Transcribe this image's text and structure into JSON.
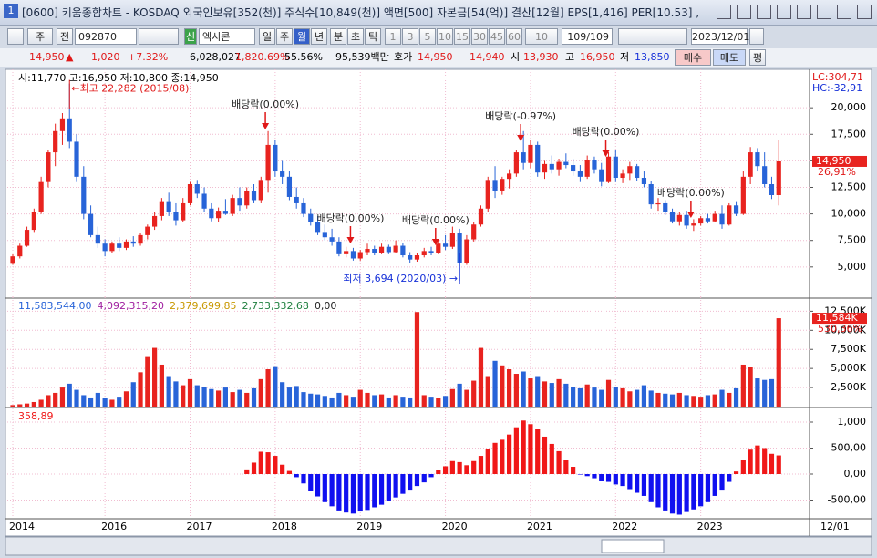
{
  "window": {
    "title": "[0600] 키움종합차트 - KOSDAQ 외국인보유[352(천)] 주식수[10,849(천)] 액면[500] 자본금[54(억)] 결산[12월] EPS[1,416] PER[10.53] ,"
  },
  "toolbar": {
    "items": [
      "주",
      "전",
      "092870",
      "신",
      "엑시콘",
      "일",
      "주",
      "월",
      "년",
      "분",
      "초",
      "틱",
      "1",
      "3",
      "5",
      "10",
      "15",
      "30",
      "45",
      "60",
      "10",
      "109/109",
      "2023/12/01"
    ]
  },
  "quote": {
    "items": [
      "14,950",
      "▲",
      "1,020",
      "+7.32%",
      "6,028,027",
      "1,820.69%",
      "55.56%",
      "95,539백만",
      "호가",
      "14,950",
      "14,940",
      "시",
      "13,930",
      "고",
      "16,950",
      "저",
      "13,850",
      "매수",
      "매도",
      "평"
    ]
  },
  "chart_data": [
    {
      "type": "candlestick",
      "legend": "시:11,770 고:16,950 저:10,800 종:14,950",
      "up_color": "#e8231f",
      "down_color": "#2864d8",
      "ylim": [
        2150,
        23450
      ],
      "yticks": [
        {
          "value": 5000,
          "label": "5,000"
        },
        {
          "value": 7500,
          "label": "7,500"
        },
        {
          "value": 10000,
          "label": "10,000"
        },
        {
          "value": 12500,
          "label": "12,500"
        },
        {
          "value": 15000,
          "label": "15,000"
        },
        {
          "value": 17500,
          "label": "17,500"
        },
        {
          "value": 20000,
          "label": "20,000"
        }
      ],
      "grid": true,
      "right_labels": [
        "LC:304,71",
        "HC:-32,91"
      ],
      "last_price": {
        "value": 14950,
        "label": "14,950"
      },
      "change_label": "26,91%",
      "annotations": {
        "high": "←최고 22,282 (2015/08)",
        "low": "최저 3,694 (2020/03) →",
        "dividends": [
          "배당락(0.00%)",
          "배당락(0.00%)",
          "배당락(0.00%)",
          "배당락(-0.97%)",
          "배당락(0.00%)",
          "배당락(0.00%)"
        ]
      },
      "candles": [
        [
          5300,
          6200,
          5200,
          6000
        ],
        [
          6000,
          7200,
          5800,
          7000
        ],
        [
          7000,
          8800,
          6900,
          8500
        ],
        [
          8500,
          10500,
          8300,
          10200
        ],
        [
          10200,
          13500,
          10000,
          13000
        ],
        [
          13000,
          16000,
          12500,
          15800
        ],
        [
          15800,
          18500,
          14500,
          17800
        ],
        [
          17800,
          19500,
          16500,
          19000
        ],
        [
          19000,
          22282,
          16200,
          16800
        ],
        [
          16800,
          17500,
          13000,
          13500
        ],
        [
          13500,
          14500,
          9500,
          10000
        ],
        [
          10000,
          10800,
          7800,
          8000
        ],
        [
          8000,
          8800,
          6800,
          7200
        ],
        [
          7200,
          7600,
          6000,
          6500
        ],
        [
          6500,
          7400,
          6300,
          7200
        ],
        [
          7200,
          7800,
          6500,
          6800
        ],
        [
          6800,
          7600,
          6600,
          7400
        ],
        [
          7400,
          7900,
          6900,
          7200
        ],
        [
          7200,
          8200,
          7000,
          8000
        ],
        [
          8000,
          9000,
          7600,
          8800
        ],
        [
          8800,
          10200,
          8500,
          9800
        ],
        [
          9800,
          11500,
          9400,
          11200
        ],
        [
          11200,
          12000,
          9800,
          10200
        ],
        [
          10200,
          11000,
          8900,
          9400
        ],
        [
          9400,
          11500,
          9200,
          11000
        ],
        [
          11000,
          13000,
          10800,
          12800
        ],
        [
          12800,
          13200,
          11500,
          11900
        ],
        [
          11900,
          12500,
          10200,
          10500
        ],
        [
          10500,
          11000,
          9300,
          9600
        ],
        [
          9600,
          10600,
          9200,
          10300
        ],
        [
          10300,
          11400,
          9900,
          10000
        ],
        [
          10000,
          11800,
          9800,
          11500
        ],
        [
          11500,
          12500,
          10300,
          10800
        ],
        [
          10800,
          12500,
          10500,
          12200
        ],
        [
          12200,
          12800,
          11000,
          11300
        ],
        [
          11300,
          13500,
          11000,
          13200
        ],
        [
          13200,
          17800,
          12000,
          16500
        ],
        [
          16500,
          17000,
          13500,
          14000
        ],
        [
          14000,
          15000,
          12800,
          13500
        ],
        [
          13500,
          14000,
          11300,
          11600
        ],
        [
          11600,
          12500,
          10500,
          11000
        ],
        [
          11000,
          11500,
          9700,
          10000
        ],
        [
          10000,
          10500,
          8900,
          9200
        ],
        [
          9200,
          9800,
          8000,
          8300
        ],
        [
          8300,
          9000,
          7500,
          7800
        ],
        [
          7800,
          8600,
          7000,
          7400
        ],
        [
          7400,
          7800,
          6000,
          6200
        ],
        [
          6200,
          6900,
          5900,
          6500
        ],
        [
          6500,
          6800,
          5600,
          5800
        ],
        [
          5800,
          6600,
          5600,
          6400
        ],
        [
          6400,
          7200,
          6100,
          6700
        ],
        [
          6700,
          7000,
          6100,
          6300
        ],
        [
          6300,
          7200,
          6200,
          6900
        ],
        [
          6900,
          7100,
          6200,
          6400
        ],
        [
          6400,
          7500,
          6300,
          7000
        ],
        [
          7000,
          7300,
          5900,
          6100
        ],
        [
          6100,
          6400,
          5400,
          5700
        ],
        [
          5700,
          6300,
          5500,
          6100
        ],
        [
          6100,
          6800,
          5900,
          6500
        ],
        [
          6500,
          6900,
          6100,
          6300
        ],
        [
          6300,
          7600,
          6200,
          7200
        ],
        [
          7200,
          8000,
          6600,
          6900
        ],
        [
          6900,
          8800,
          6700,
          8200
        ],
        [
          8200,
          8600,
          3694,
          5400
        ],
        [
          5400,
          8000,
          5200,
          7600
        ],
        [
          7600,
          9200,
          7400,
          9000
        ],
        [
          9000,
          10800,
          8800,
          10500
        ],
        [
          10500,
          13500,
          10200,
          13200
        ],
        [
          13200,
          14500,
          11500,
          12200
        ],
        [
          12200,
          13500,
          11800,
          13300
        ],
        [
          13300,
          14200,
          12400,
          13800
        ],
        [
          13800,
          16000,
          13500,
          15800
        ],
        [
          15800,
          17800,
          14200,
          14800
        ],
        [
          14800,
          17000,
          14300,
          16500
        ],
        [
          16500,
          16800,
          13500,
          13900
        ],
        [
          13900,
          15000,
          13300,
          14700
        ],
        [
          14700,
          15500,
          13800,
          14200
        ],
        [
          14200,
          15200,
          13600,
          14900
        ],
        [
          14900,
          15700,
          14300,
          14600
        ],
        [
          14600,
          15200,
          13600,
          14000
        ],
        [
          14000,
          14600,
          13000,
          13500
        ],
        [
          13500,
          15500,
          13300,
          15100
        ],
        [
          15100,
          15400,
          13800,
          14200
        ],
        [
          14200,
          14800,
          12600,
          13000
        ],
        [
          13000,
          15800,
          12900,
          15400
        ],
        [
          15400,
          16000,
          13000,
          13400
        ],
        [
          13400,
          14200,
          12900,
          13800
        ],
        [
          13800,
          14900,
          13200,
          14500
        ],
        [
          14500,
          14700,
          13100,
          13400
        ],
        [
          13400,
          14000,
          12500,
          12800
        ],
        [
          12800,
          13100,
          10500,
          10900
        ],
        [
          10900,
          11500,
          10300,
          11000
        ],
        [
          11000,
          11300,
          9900,
          10200
        ],
        [
          10200,
          10500,
          9100,
          9300
        ],
        [
          9300,
          10200,
          8900,
          9900
        ],
        [
          9900,
          10300,
          8600,
          8900
        ],
        [
          8900,
          9500,
          8400,
          9100
        ],
        [
          9100,
          9800,
          8900,
          9600
        ],
        [
          9600,
          10000,
          9100,
          9300
        ],
        [
          9300,
          10300,
          9200,
          10000
        ],
        [
          10000,
          10800,
          8600,
          9000
        ],
        [
          9000,
          11000,
          8900,
          10800
        ],
        [
          10800,
          11200,
          9800,
          10000
        ],
        [
          10000,
          14000,
          9900,
          13500
        ],
        [
          13500,
          16300,
          12800,
          15800
        ],
        [
          15800,
          16200,
          14000,
          14500
        ],
        [
          14500,
          15800,
          12500,
          12800
        ],
        [
          12800,
          13500,
          11400,
          11770
        ],
        [
          11770,
          16950,
          10800,
          14950
        ]
      ]
    },
    {
      "type": "bar",
      "legend": [
        "11,583,544,00",
        "4,092,315,20",
        "2,379,699,85",
        "2,733,332,68",
        "0,00"
      ],
      "legend_colors": [
        "#2864d8",
        "#a020a0",
        "#c89800",
        "#208040",
        "#222222"
      ],
      "ylim": [
        0,
        14100
      ],
      "yticks": [
        {
          "value": 2500,
          "label": "2,500K"
        },
        {
          "value": 5000,
          "label": "5,000K"
        },
        {
          "value": 7500,
          "label": "7,500K"
        },
        {
          "value": 10000,
          "label": "10,000K"
        },
        {
          "value": 12500,
          "label": "12,500K"
        }
      ],
      "grid": true,
      "last_value": {
        "value": 11584,
        "label": "11,584K"
      },
      "change_label": "530,36%",
      "values": [
        200,
        300,
        400,
        600,
        900,
        1500,
        1800,
        2500,
        3000,
        2200,
        1500,
        1200,
        1800,
        1100,
        900,
        1300,
        2000,
        3200,
        4500,
        6500,
        7700,
        5500,
        4000,
        3300,
        2800,
        3600,
        2800,
        2600,
        2300,
        2100,
        2500,
        1900,
        2200,
        1800,
        2400,
        3600,
        4900,
        5300,
        3200,
        2500,
        2700,
        1900,
        1700,
        1600,
        1400,
        1200,
        1800,
        1500,
        1300,
        2200,
        1800,
        1500,
        1600,
        1200,
        1500,
        1300,
        1200,
        12400,
        1500,
        1300,
        1100,
        1400,
        2300,
        3000,
        2200,
        3400,
        7700,
        4000,
        6000,
        5400,
        4900,
        4300,
        4600,
        3700,
        4000,
        3300,
        3100,
        3600,
        3000,
        2600,
        2400,
        2900,
        2500,
        2200,
        3500,
        2600,
        2400,
        2000,
        2200,
        2800,
        2100,
        1800,
        1700,
        1600,
        1800,
        1500,
        1400,
        1300,
        1500,
        1600,
        2200,
        1800,
        2400,
        5500,
        5200,
        3700,
        3500,
        3600,
        11584
      ]
    },
    {
      "type": "bar",
      "legend": "358,89",
      "pos_color": "#f01818",
      "neg_color": "#1010f0",
      "ylim": [
        -842,
        1228
      ],
      "yticks": [
        {
          "value": -500,
          "label": "-500,00"
        },
        {
          "value": 0,
          "label": "0,00"
        },
        {
          "value": 500,
          "label": "500,00"
        },
        {
          "value": 1000,
          "label": "1,000"
        }
      ],
      "grid": true,
      "categories": [
        "2014",
        null,
        null,
        null,
        null,
        null,
        null,
        null,
        null,
        null,
        null,
        null,
        null,
        "2016",
        null,
        null,
        null,
        null,
        null,
        null,
        null,
        null,
        null,
        null,
        null,
        "2017",
        null,
        null,
        null,
        null,
        null,
        null,
        null,
        null,
        null,
        null,
        null,
        "2018",
        null,
        null,
        null,
        null,
        null,
        null,
        null,
        null,
        null,
        null,
        null,
        "2019",
        null,
        null,
        null,
        null,
        null,
        null,
        null,
        null,
        null,
        null,
        null,
        "2020",
        null,
        null,
        null,
        null,
        null,
        null,
        null,
        null,
        null,
        null,
        null,
        "2021",
        null,
        null,
        null,
        null,
        null,
        null,
        null,
        null,
        null,
        null,
        null,
        "2022",
        null,
        null,
        null,
        null,
        null,
        null,
        null,
        null,
        null,
        null,
        null,
        "2023",
        null,
        null,
        null,
        null,
        null,
        null,
        null,
        null,
        null,
        null,
        null
      ],
      "end_label": "12/01",
      "values": [
        null,
        null,
        null,
        null,
        null,
        null,
        null,
        null,
        null,
        null,
        null,
        null,
        null,
        null,
        null,
        null,
        null,
        null,
        null,
        null,
        null,
        null,
        null,
        null,
        null,
        null,
        null,
        null,
        null,
        null,
        null,
        null,
        null,
        90,
        220,
        430,
        420,
        350,
        180,
        60,
        -60,
        -180,
        -320,
        -430,
        -540,
        -620,
        -700,
        -740,
        -760,
        -720,
        -690,
        -640,
        -590,
        -520,
        -450,
        -380,
        -300,
        -230,
        -160,
        -60,
        80,
        150,
        250,
        230,
        170,
        250,
        350,
        480,
        600,
        660,
        760,
        900,
        1030,
        960,
        870,
        720,
        580,
        440,
        280,
        140,
        -10,
        -40,
        -80,
        -140,
        -150,
        -200,
        -230,
        -290,
        -360,
        -420,
        -540,
        -640,
        -700,
        -760,
        -780,
        -730,
        -680,
        -620,
        -540,
        -420,
        -300,
        -150,
        50,
        280,
        470,
        550,
        500,
        390,
        358.89
      ]
    }
  ]
}
